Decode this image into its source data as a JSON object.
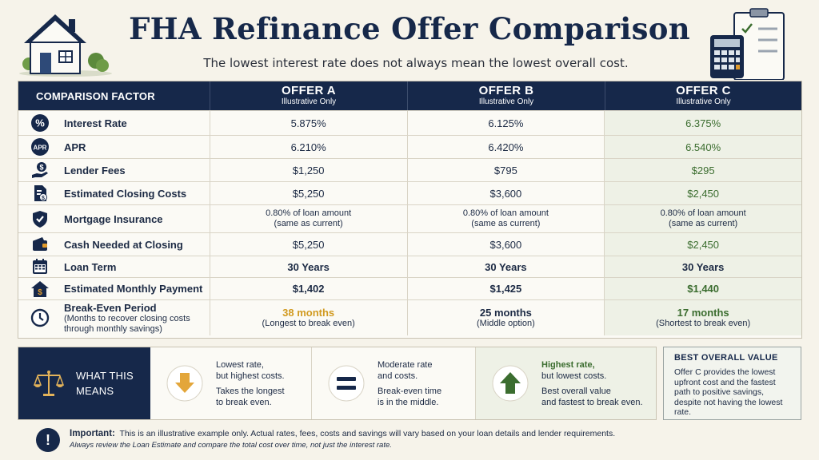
{
  "header": {
    "title": "FHA Refinance Offer Comparison",
    "subtitle": "The lowest interest rate does not always mean the lowest overall cost."
  },
  "table": {
    "factor_header": "COMPARISON FACTOR",
    "offers": [
      {
        "name": "OFFER A",
        "sub": "Illustrative Only"
      },
      {
        "name": "OFFER B",
        "sub": "Illustrative Only"
      },
      {
        "name": "OFFER C",
        "sub": "Illustrative Only"
      }
    ],
    "rows": [
      {
        "icon": "percent-icon",
        "label": "Interest Rate",
        "a": "5.875%",
        "b": "6.125%",
        "c": "6.375%"
      },
      {
        "icon": "apr-icon",
        "label": "APR",
        "a": "6.210%",
        "b": "6.420%",
        "c": "6.540%"
      },
      {
        "icon": "hand-coin-icon",
        "label": "Lender Fees",
        "a": "$1,250",
        "b": "$795",
        "c": "$295"
      },
      {
        "icon": "document-dollar-icon",
        "label": "Estimated Closing Costs",
        "a": "$5,250",
        "b": "$3,600",
        "c": "$2,450"
      },
      {
        "icon": "shield-check-icon",
        "label": "Mortgage Insurance",
        "a1": "0.80% of loan amount",
        "a2": "(same as current)",
        "b1": "0.80% of loan amount",
        "b2": "(same as current)",
        "c1": "0.80% of loan amount",
        "c2": "(same as current)"
      },
      {
        "icon": "wallet-icon",
        "label": "Cash Needed at Closing",
        "a": "$5,250",
        "b": "$3,600",
        "c": "$2,450"
      },
      {
        "icon": "calendar-icon",
        "label": "Loan Term",
        "a": "30 Years",
        "b": "30 Years",
        "c": "30 Years"
      },
      {
        "icon": "house-dollar-icon",
        "label": "Estimated Monthly Payment",
        "a": "$1,402",
        "b": "$1,425",
        "c": "$1,440"
      },
      {
        "icon": "clock-icon",
        "label": "Break-Even Period",
        "sub": "(Months to recover closing costs through monthly savings)",
        "a1": "38 months",
        "a2": "(Longest to break even)",
        "b1": "25 months",
        "b2": "(Middle option)",
        "c1": "17 months",
        "c2": "(Shortest to break even)"
      }
    ]
  },
  "means": {
    "title_line1": "WHAT THIS",
    "title_line2": "MEANS",
    "a": {
      "l1": "Lowest rate,",
      "l2": "but highest costs.",
      "l3": "Takes the longest",
      "l4": "to break even."
    },
    "b": {
      "l1": "Moderate rate",
      "l2": "and costs.",
      "l3": "Break-even time",
      "l4": "is in the middle."
    },
    "c": {
      "l1": "Highest rate,",
      "l2": "but lowest costs.",
      "l3": "Best overall value",
      "l4": "and fastest to break even."
    }
  },
  "best": {
    "title": "BEST OVERALL VALUE",
    "text": "Offer C provides the lowest upfront cost and the fastest path to positive savings, despite not having the lowest rate."
  },
  "footer": {
    "icon": "exclamation-icon",
    "label": "Important:",
    "text": "This is an illustrative example only. Actual rates, fees, costs and savings will vary based on your loan details and lender requirements.",
    "italic": "Always review the Loan Estimate and compare the total cost over time, not just the interest rate."
  },
  "colors": {
    "navy": "#16284a",
    "green": "#3b6d2f",
    "gold": "#d19a20",
    "cream": "#f6f3ea"
  }
}
